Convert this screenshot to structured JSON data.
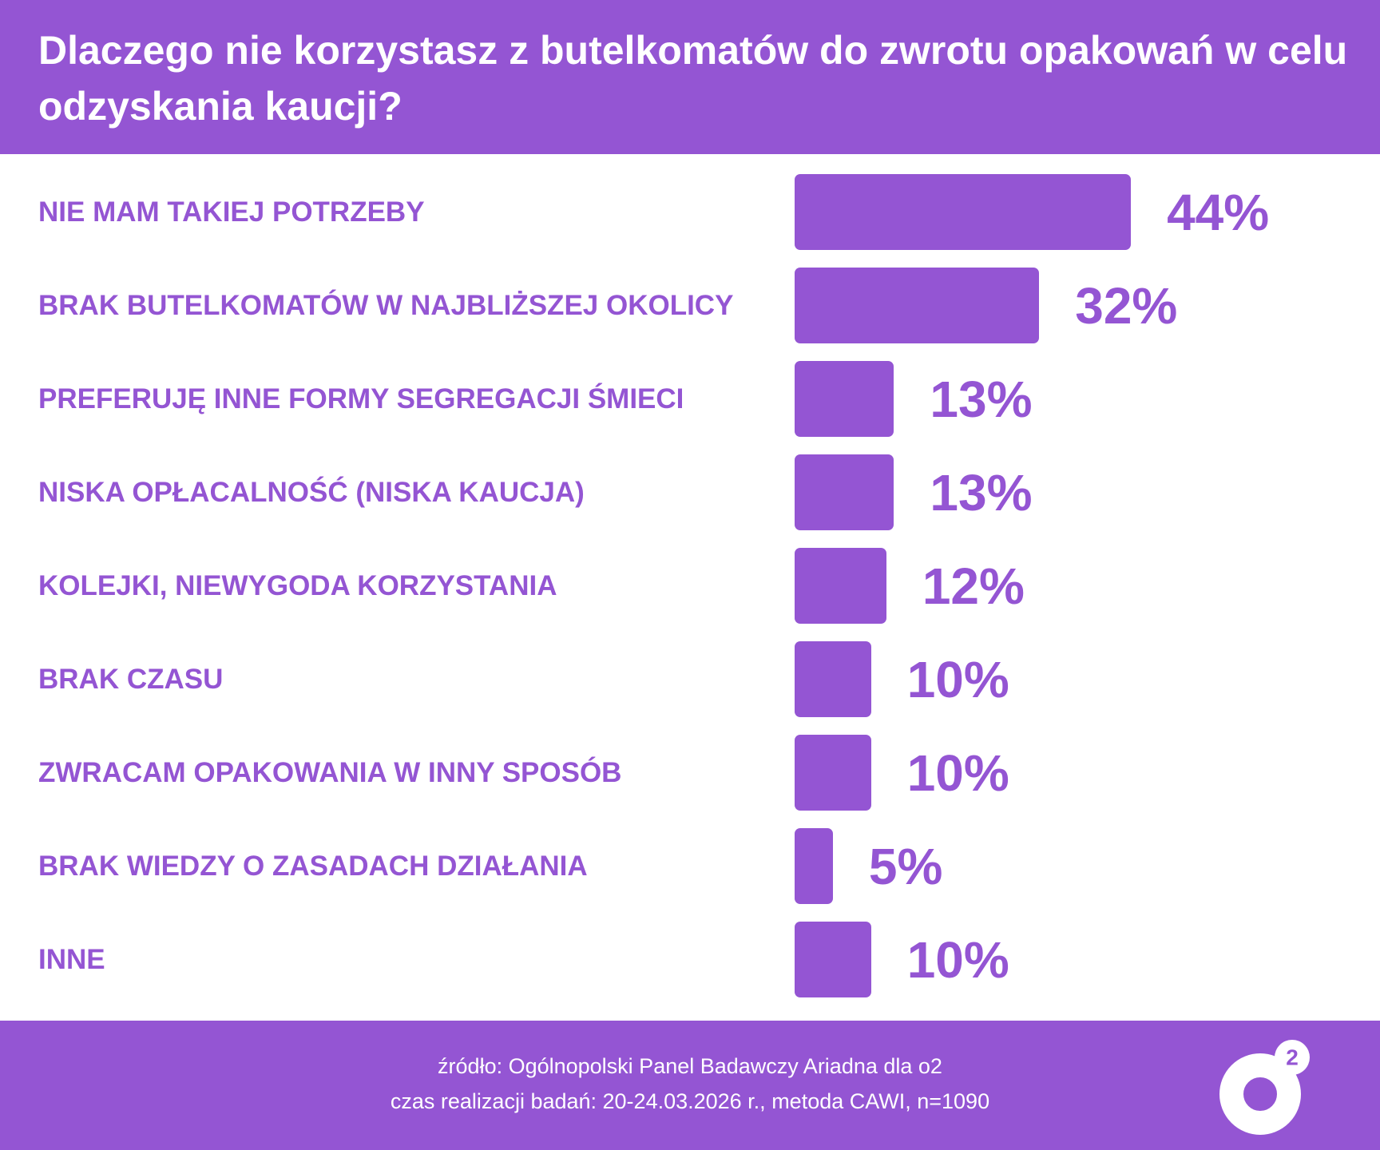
{
  "chart_data": {
    "type": "bar",
    "orientation": "horizontal",
    "title": "Dlaczego nie korzystasz z butelkomatów do zwrotu opakowań w celu odzyskania kaucji?",
    "categories": [
      "NIE MAM TAKIEJ POTRZEBY",
      "BRAK BUTELKOMATÓW W NAJBLIŻSZEJ OKOLICY",
      "PREFERUJĘ INNE FORMY SEGREGACJI ŚMIECI",
      "NISKA OPŁACALNOŚĆ (NISKA KAUCJA)",
      "KOLEJKI, NIEWYGODA KORZYSTANIA",
      "BRAK CZASU",
      "ZWRACAM OPAKOWANIA W INNY SPOSÓB",
      "BRAK WIEDZY O ZASADACH DZIAŁANIA",
      "INNE"
    ],
    "values": [
      44,
      32,
      13,
      13,
      12,
      10,
      10,
      5,
      10
    ],
    "value_labels": [
      "44%",
      "32%",
      "13%",
      "13%",
      "12%",
      "10%",
      "10%",
      "5%",
      "10%"
    ],
    "color": "#9455d3",
    "source": "źródło: Ogólnopolski Panel Badawczy Ariadna dla o2",
    "note": "czas realizacji badań: 20-24.03.2026 r., metoda CAWI, n=1090"
  },
  "logo": "2"
}
